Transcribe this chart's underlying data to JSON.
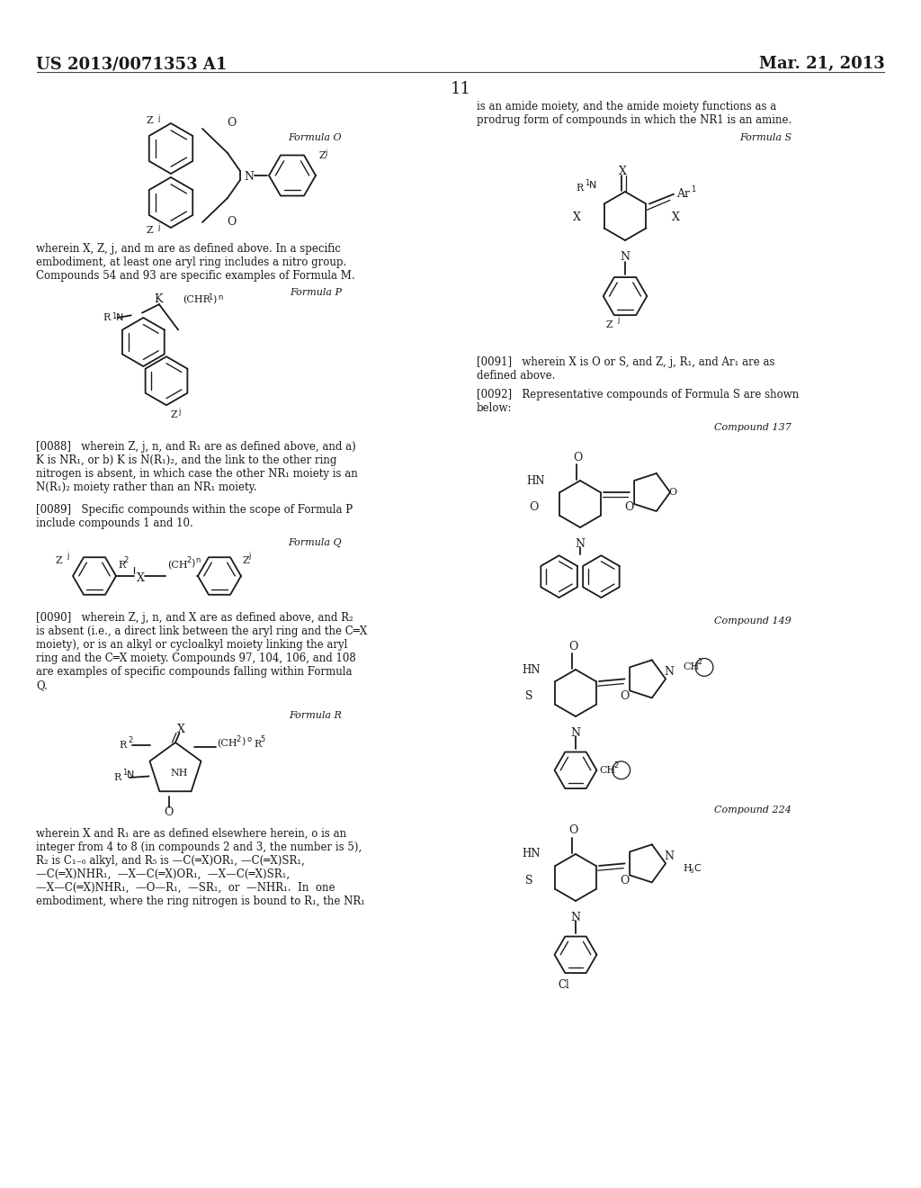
{
  "bg": "#ffffff",
  "text_color": "#1a1a1a",
  "header_left": "US 2013/0071353 A1",
  "header_right": "Mar. 21, 2013",
  "page_num": "11",
  "lw": 1.3,
  "font_serif": "DejaVu Serif",
  "font_size_body": 8.5,
  "font_size_label": 8.0,
  "col_div": 512
}
